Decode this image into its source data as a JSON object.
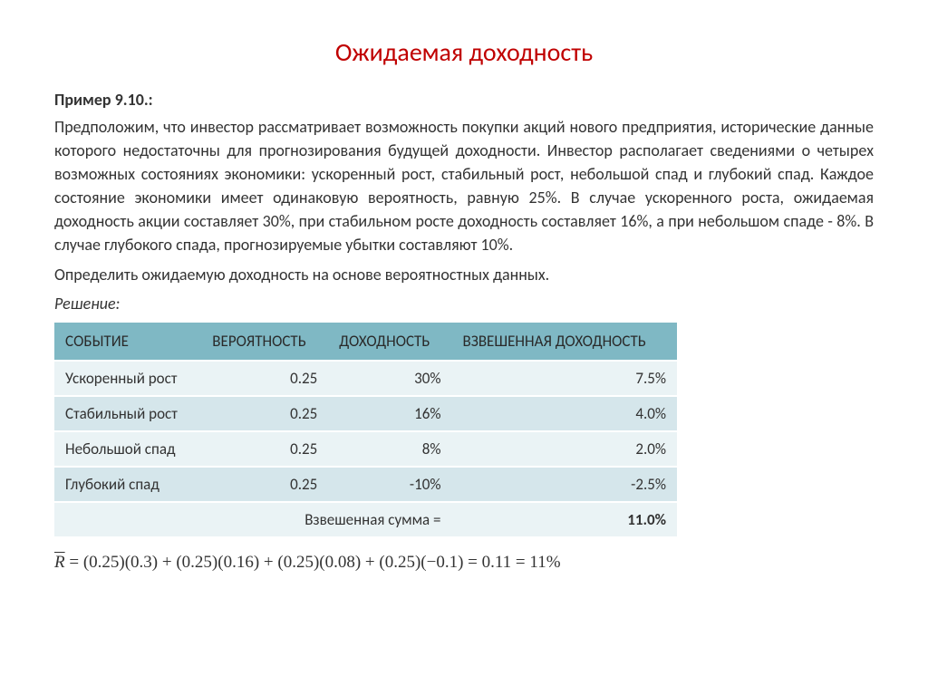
{
  "title": "Ожидаемая доходность",
  "example_label": "Пример 9.10.:",
  "paragraph1": "Предположим, что инвестор рассматривает возможность покупки акций нового предприятия, исторические данные которого недостаточны для прогнозирования будущей доходности. Инвестор располагает сведениями о четырех возможных состояниях экономики: ускоренный рост, стабильный рост, небольшой спад и глубокий спад. Каждое состояние экономики имеет одинаковую вероятность, равную 25%. В случае ускоренного роста, ожидаемая доходность акции составляет 30%, при стабильном росте доходность составляет 16%, а при небольшом спаде - 8%. В случае глубокого спада, прогнозируемые убытки составляют 10%.",
  "paragraph2": "Определить ожидаемую доходность на основе вероятностных данных.",
  "solution_label": "Решение:",
  "table": {
    "columns": [
      "СОБЫТИЕ",
      "ВЕРОЯТНОСТЬ",
      "ДОХОДНОСТЬ",
      "ВЗВЕШЕННАЯ ДОХОДНОСТЬ"
    ],
    "rows": [
      {
        "event": "Ускоренный рост",
        "prob": "0.25",
        "ret": "30%",
        "weighted": "7.5%"
      },
      {
        "event": "Стабильный рост",
        "prob": "0.25",
        "ret": "16%",
        "weighted": "4.0%"
      },
      {
        "event": "Небольшой спад",
        "prob": "0.25",
        "ret": "8%",
        "weighted": "2.0%"
      },
      {
        "event": "Глубокий спад",
        "prob": "0.25",
        "ret": "-10%",
        "weighted": "-2.5%"
      }
    ],
    "sum_label": "Взвешенная сумма =",
    "sum_value": "11.0%",
    "header_bg": "#7fb8c4",
    "row_odd_bg": "#eaf3f5",
    "row_even_bg": "#d5e6eb"
  },
  "formula": {
    "lhs": "R",
    "rhs": " = (0.25)(0.3) + (0.25)(0.16) + (0.25)(0.08) + (0.25)(−0.1) = 0.11 = 11%"
  },
  "colors": {
    "title": "#c00000",
    "text": "#333333",
    "background": "#ffffff"
  }
}
